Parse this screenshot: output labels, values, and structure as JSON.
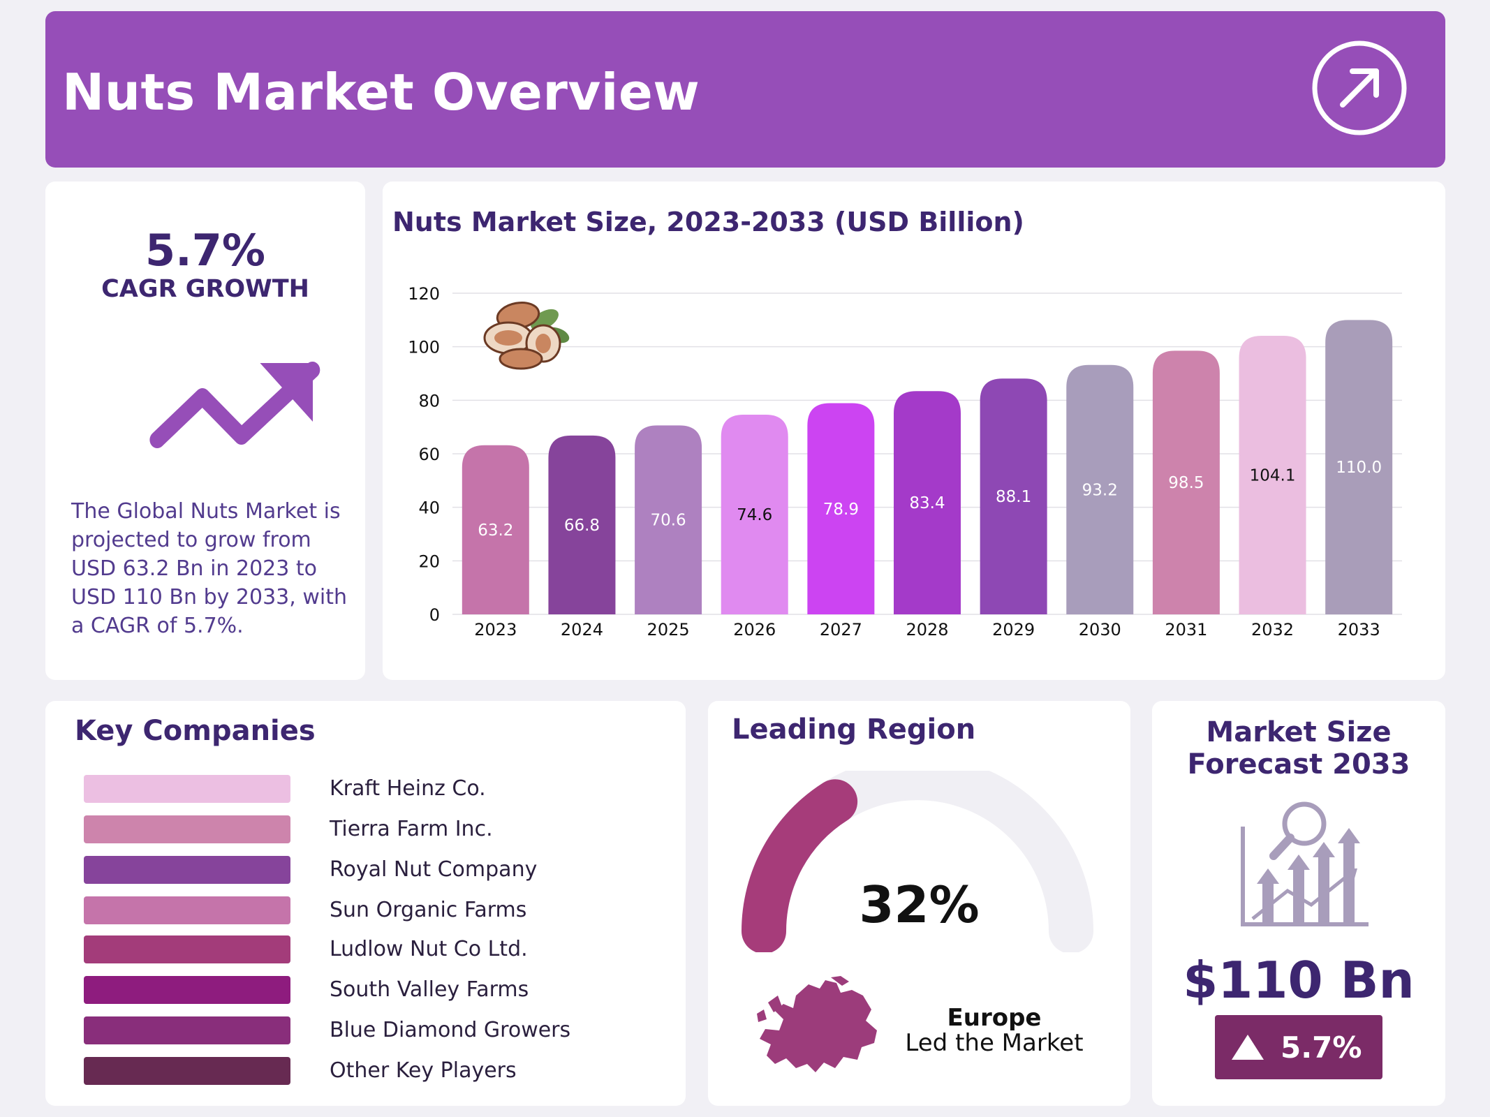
{
  "header": {
    "title": "Nuts Market Overview",
    "icon": "arrow-up-right-circle-icon"
  },
  "cagr": {
    "value": "5.7%",
    "label": "CAGR GROWTH",
    "description": "The Global Nuts Market is projected to grow from USD 63.2 Bn in 2023 to USD 110 Bn by 2033, with a CAGR of 5.7%.",
    "icon": "trend-up-arrow-icon",
    "accent": "#964eb8"
  },
  "chart_data": {
    "type": "bar",
    "title": "Nuts Market Size, 2023-2033 (USD Billion)",
    "xlabel": "",
    "ylabel": "",
    "categories": [
      "2023",
      "2024",
      "2025",
      "2026",
      "2027",
      "2028",
      "2029",
      "2030",
      "2031",
      "2032",
      "2033"
    ],
    "values": [
      63.2,
      66.8,
      70.6,
      74.6,
      78.9,
      83.4,
      88.1,
      93.2,
      98.5,
      104.1,
      110.0
    ],
    "value_labels": [
      "63.2",
      "66.8",
      "70.6",
      "74.6",
      "78.9",
      "83.4",
      "88.1",
      "93.2",
      "98.5",
      "104.1",
      "110.0"
    ],
    "colors": [
      "#c574aa",
      "#86449b",
      "#ae81c0",
      "#e08af0",
      "#cc44f2",
      "#a43ac9",
      "#8e48b4",
      "#a89dbb",
      "#cd83ac",
      "#ebbee0",
      "#a99db9"
    ],
    "label_colors": [
      "#ffffff",
      "#ffffff",
      "#ffffff",
      "#111111",
      "#ffffff",
      "#ffffff",
      "#ffffff",
      "#ffffff",
      "#ffffff",
      "#111111",
      "#ffffff"
    ],
    "ylim": [
      0,
      120
    ],
    "yticks": [
      0,
      20,
      40,
      60,
      80,
      100,
      120
    ],
    "grid": true,
    "legend": "none"
  },
  "companies": {
    "title": "Key Companies",
    "items": [
      {
        "name": "Kraft Heinz Co.",
        "color": "#ecbfe2"
      },
      {
        "name": "Tierra Farm Inc.",
        "color": "#cd84ac"
      },
      {
        "name": "Royal Nut Company",
        "color": "#86449b"
      },
      {
        "name": "Sun Organic Farms",
        "color": "#c574aa"
      },
      {
        "name": "Ludlow Nut Co Ltd.",
        "color": "#a33c7a"
      },
      {
        "name": "South Valley Farms",
        "color": "#8e1c7e"
      },
      {
        "name": "Blue Diamond Growers",
        "color": "#892e7b"
      },
      {
        "name": "Other Key Players",
        "color": "#672a52"
      }
    ]
  },
  "region": {
    "title": "Leading Region",
    "share": 32,
    "share_label": "32%",
    "name": "Europe",
    "subtitle": "Led the Market",
    "gauge_color": "#a63c7a",
    "track_color": "#f0eff4",
    "map_icon": "europe-map-icon"
  },
  "forecast": {
    "title": "Market Size Forecast 2033",
    "value": "$110 Bn",
    "growth": "5.7%",
    "icon": "market-analysis-icon",
    "badge_color": "#7b2b67"
  }
}
